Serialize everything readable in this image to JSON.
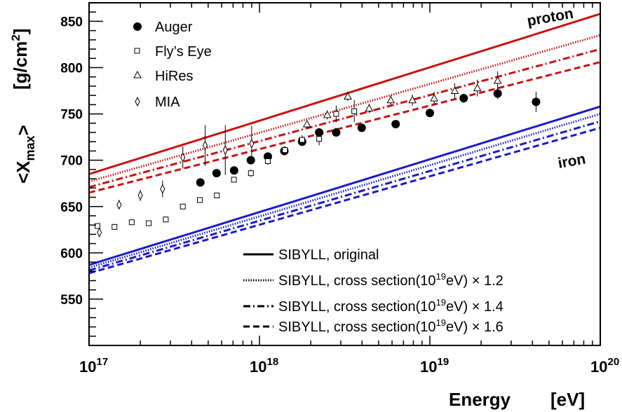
{
  "chart_data": {
    "type": "scatter",
    "xlabel": "Energy",
    "xunit": "[eV]",
    "ylabel": "<X",
    "ylabel_sub": "max",
    "ylabel_close": ">",
    "yunit_prefix": "[g/cm",
    "yunit_sup": "2",
    "yunit_suffix": "]",
    "x_scale": "log",
    "xlim": [
      1e+17,
      1e+20
    ],
    "ylim": [
      500,
      870
    ],
    "x_ticks": [
      {
        "base": "10",
        "exp": "17",
        "value": 1e+17
      },
      {
        "base": "10",
        "exp": "18",
        "value": 1e+18
      },
      {
        "base": "10",
        "exp": "19",
        "value": 1e+19
      },
      {
        "base": "10",
        "exp": "20",
        "value": 1e+20
      }
    ],
    "y_ticks": [
      550,
      600,
      650,
      700,
      750,
      800,
      850
    ],
    "grid": false,
    "labels": {
      "proton": "proton",
      "iron": "iron"
    },
    "colors": {
      "proton": "#cc1111",
      "iron": "#1a1acc"
    },
    "data_legend": [
      "Auger",
      "Fly’s Eye",
      "HiRes",
      "MIA"
    ],
    "model_legend": [
      {
        "style": "solid",
        "text": "SIBYLL, original"
      },
      {
        "style": "dotted",
        "pre": "SIBYLL, cross section(10",
        "sup": "19",
        "post": "eV) × 1.2"
      },
      {
        "style": "dashdot",
        "pre": "SIBYLL, cross section(10",
        "sup": "19",
        "post": "eV) × 1.4"
      },
      {
        "style": "dashed",
        "pre": "SIBYLL, cross section(10",
        "sup": "19",
        "post": "eV) × 1.6"
      }
    ],
    "model_lines": [
      {
        "name": "proton",
        "style": "solid",
        "y17": 685,
        "y20": 858
      },
      {
        "name": "proton",
        "style": "dotted",
        "y17": 677,
        "y20": 835
      },
      {
        "name": "proton",
        "style": "dashdot",
        "y17": 671,
        "y20": 820
      },
      {
        "name": "proton",
        "style": "dashed",
        "y17": 665,
        "y20": 806
      },
      {
        "name": "iron",
        "style": "solid",
        "y17": 587,
        "y20": 758
      },
      {
        "name": "iron",
        "style": "dotted",
        "y17": 584,
        "y20": 750
      },
      {
        "name": "iron",
        "style": "dashdot",
        "y17": 581,
        "y20": 742
      },
      {
        "name": "iron",
        "style": "dashed",
        "y17": 578,
        "y20": 735
      }
    ],
    "series": [
      {
        "name": "Auger",
        "marker": "filled-circle",
        "points": [
          [
            4.5e+17,
            676,
            4
          ],
          [
            5.6e+17,
            686,
            4
          ],
          [
            7.1e+17,
            689,
            4
          ],
          [
            8.9e+17,
            700,
            4
          ],
          [
            1.12e+18,
            704,
            4
          ],
          [
            1.4e+18,
            710,
            4
          ],
          [
            1.78e+18,
            720,
            4
          ],
          [
            2.24e+18,
            730,
            4
          ],
          [
            2.82e+18,
            730,
            4
          ],
          [
            3.98e+18,
            735,
            4
          ],
          [
            6.3e+18,
            739,
            4
          ],
          [
            1e+19,
            751,
            4
          ],
          [
            1.58e+19,
            767,
            5
          ],
          [
            2.5e+19,
            772,
            6
          ],
          [
            4.2e+19,
            763,
            11
          ]
        ]
      },
      {
        "name": "Fly’s Eye",
        "marker": "open-square",
        "points": [
          [
            1.12e+17,
            629,
            3
          ],
          [
            1.41e+17,
            628,
            3
          ],
          [
            1.78e+17,
            633,
            3
          ],
          [
            2.24e+17,
            632,
            3
          ],
          [
            2.82e+17,
            636,
            3
          ],
          [
            3.55e+17,
            650,
            3
          ],
          [
            4.47e+17,
            657,
            3
          ],
          [
            5.62e+17,
            662,
            3
          ],
          [
            7.08e+17,
            679,
            3
          ],
          [
            8.91e+17,
            686,
            4
          ],
          [
            1.12e+18,
            699,
            4
          ],
          [
            1.41e+18,
            711,
            4
          ],
          [
            1.78e+18,
            722,
            5
          ],
          [
            2.24e+18,
            723,
            7
          ],
          [
            2.82e+18,
            750,
            9
          ],
          [
            3.6e+18,
            753,
            12
          ]
        ]
      },
      {
        "name": "HiRes",
        "marker": "open-triangle",
        "points": [
          [
            1.9e+18,
            739,
            4
          ],
          [
            2.5e+18,
            749,
            5
          ],
          [
            3.3e+18,
            769,
            5
          ],
          [
            4.4e+18,
            756,
            5
          ],
          [
            5.9e+18,
            765,
            5
          ],
          [
            7.9e+18,
            765,
            6
          ],
          [
            1.06e+19,
            767,
            7
          ],
          [
            1.4e+19,
            775,
            8
          ],
          [
            1.9e+19,
            778,
            9
          ],
          [
            2.5e+19,
            786,
            10
          ]
        ]
      },
      {
        "name": "MIA",
        "marker": "open-diamond",
        "points": [
          [
            1.15e+17,
            622,
            5
          ],
          [
            1.5e+17,
            652,
            5
          ],
          [
            2e+17,
            662,
            6
          ],
          [
            2.7e+17,
            669,
            9
          ],
          [
            3.55e+17,
            703,
            12
          ],
          [
            4.8e+17,
            716,
            22
          ],
          [
            6.3e+17,
            711,
            27
          ],
          [
            9e+17,
            718,
            19
          ]
        ]
      }
    ]
  }
}
